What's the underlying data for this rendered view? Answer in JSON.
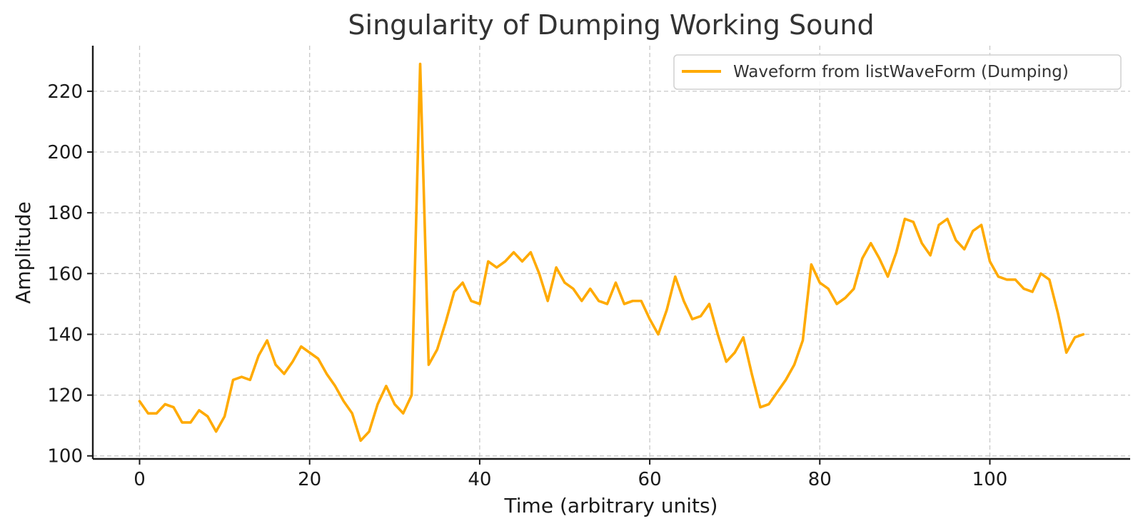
{
  "chart_data": {
    "type": "line",
    "title": "Singularity of Dumping Working Sound",
    "xlabel": "Time (arbitrary units)",
    "ylabel": "Amplitude",
    "xlim": [
      -5.5,
      116.5
    ],
    "ylim": [
      99,
      235
    ],
    "xticks": [
      0,
      20,
      40,
      60,
      80,
      100
    ],
    "yticks": [
      100,
      120,
      140,
      160,
      180,
      200,
      220
    ],
    "grid": true,
    "legend_position": "top-right",
    "series": [
      {
        "name": "Waveform from listWaveForm (Dumping)",
        "color": "#FFAA00",
        "x": [
          0,
          1,
          2,
          3,
          4,
          5,
          6,
          7,
          8,
          9,
          10,
          11,
          12,
          13,
          14,
          15,
          16,
          17,
          18,
          19,
          20,
          21,
          22,
          23,
          24,
          25,
          26,
          27,
          28,
          29,
          30,
          31,
          32,
          33,
          34,
          35,
          36,
          37,
          38,
          39,
          40,
          41,
          42,
          43,
          44,
          45,
          46,
          47,
          48,
          49,
          50,
          51,
          52,
          53,
          54,
          55,
          56,
          57,
          58,
          59,
          60,
          61,
          62,
          63,
          64,
          65,
          66,
          67,
          68,
          69,
          70,
          71,
          72,
          73,
          74,
          75,
          76,
          77,
          78,
          79,
          80,
          81,
          82,
          83,
          84,
          85,
          86,
          87,
          88,
          89,
          90,
          91,
          92,
          93,
          94,
          95,
          96,
          97,
          98,
          99,
          100,
          101,
          102,
          103,
          104,
          105,
          106,
          107,
          108,
          109,
          110,
          111
        ],
        "values": [
          118,
          114,
          114,
          117,
          116,
          111,
          111,
          115,
          113,
          108,
          113,
          125,
          126,
          125,
          133,
          138,
          130,
          127,
          131,
          136,
          134,
          132,
          127,
          123,
          118,
          114,
          105,
          108,
          117,
          123,
          117,
          114,
          120,
          229,
          130,
          135,
          144,
          154,
          157,
          151,
          150,
          164,
          162,
          164,
          167,
          164,
          167,
          160,
          151,
          162,
          157,
          155,
          151,
          155,
          151,
          150,
          157,
          150,
          151,
          151,
          145,
          140,
          148,
          159,
          151,
          145,
          146,
          150,
          140,
          131,
          134,
          139,
          127,
          116,
          117,
          121,
          125,
          130,
          138,
          163,
          157,
          155,
          150,
          152,
          155,
          165,
          170,
          165,
          159,
          167,
          178,
          177,
          170,
          166,
          176,
          178,
          171,
          168,
          174,
          176,
          164,
          159,
          158,
          158,
          155,
          154,
          160,
          158,
          147,
          134,
          139,
          140
        ]
      }
    ]
  }
}
